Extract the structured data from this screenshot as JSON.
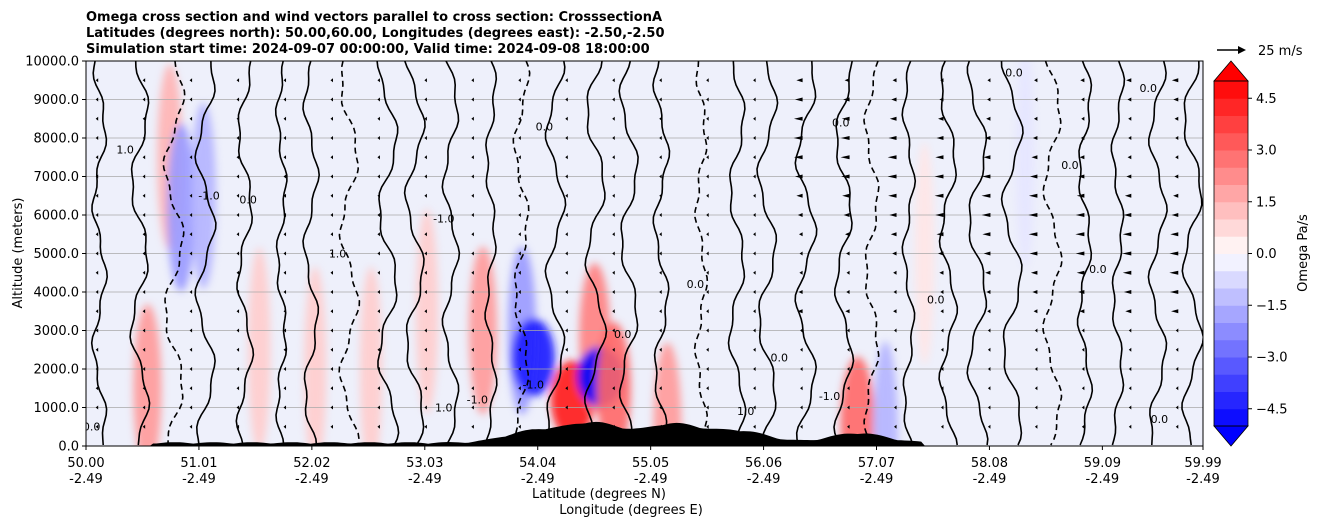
{
  "chart_data": {
    "type": "heatmap",
    "title_lines": [
      "Omega cross section and wind vectors parallel to cross section: CrosssectionA",
      "Latitudes (degrees north): 50.00,60.00, Longitudes (degrees east): -2.50,-2.50",
      "Simulation start time: 2024-09-07 00:00:00, Valid time: 2024-09-08 18:00:00"
    ],
    "ylabel": "Altitude (meters)",
    "xlabel_lines": [
      "Latitude (degrees N)",
      "Longitude (degrees E)"
    ],
    "ylim": [
      0,
      10000
    ],
    "xlim": [
      50.0,
      59.99
    ],
    "y_ticks": [
      0,
      1000,
      2000,
      3000,
      4000,
      5000,
      6000,
      7000,
      8000,
      9000,
      10000
    ],
    "y_tick_labels": [
      "0.0",
      "1000.0",
      "2000.0",
      "3000.0",
      "4000.0",
      "5000.0",
      "6000.0",
      "7000.0",
      "8000.0",
      "9000.0",
      "10000.0"
    ],
    "x_ticks": [
      50.0,
      51.01,
      52.02,
      53.03,
      54.04,
      55.05,
      56.06,
      57.07,
      58.08,
      59.09,
      59.99
    ],
    "x_tick_labels": [
      {
        "lat": "50.00",
        "lon": "-2.49"
      },
      {
        "lat": "51.01",
        "lon": "-2.49"
      },
      {
        "lat": "52.02",
        "lon": "-2.49"
      },
      {
        "lat": "53.03",
        "lon": "-2.49"
      },
      {
        "lat": "54.04",
        "lon": "-2.49"
      },
      {
        "lat": "55.05",
        "lon": "-2.49"
      },
      {
        "lat": "56.06",
        "lon": "-2.49"
      },
      {
        "lat": "57.07",
        "lon": "-2.49"
      },
      {
        "lat": "58.08",
        "lon": "-2.49"
      },
      {
        "lat": "59.09",
        "lon": "-2.49"
      },
      {
        "lat": "59.99",
        "lon": "-2.49"
      }
    ],
    "colorbar": {
      "label": "Omega Pa/s",
      "range": [
        -5.0,
        5.0
      ],
      "step": 0.5,
      "extend": "both",
      "ticks": [
        4.5,
        3.0,
        1.5,
        0.0,
        -1.5,
        -3.0,
        -4.5
      ],
      "tick_labels": [
        "4.5",
        "3.0",
        "1.5",
        "0.0",
        "−1.5",
        "−3.0",
        "−4.5"
      ],
      "colormap": "bwr"
    },
    "vector_key": {
      "label": "25 m/s",
      "speed": 25
    },
    "contour_levels": [
      -1.0,
      0.0,
      1.0
    ],
    "omega_features": [
      {
        "lat": 50.55,
        "alt": 1500,
        "omega": 2.0
      },
      {
        "lat": 50.75,
        "alt": 7500,
        "omega": 1.5
      },
      {
        "lat": 50.85,
        "alt": 6200,
        "omega": -2.0
      },
      {
        "lat": 51.05,
        "alt": 6500,
        "omega": -1.5
      },
      {
        "lat": 51.55,
        "alt": 2500,
        "omega": 1.0
      },
      {
        "lat": 52.05,
        "alt": 2000,
        "omega": 1.0
      },
      {
        "lat": 52.55,
        "alt": 2000,
        "omega": 1.0
      },
      {
        "lat": 53.05,
        "alt": 3500,
        "omega": 1.0
      },
      {
        "lat": 53.55,
        "alt": 3000,
        "omega": 2.0
      },
      {
        "lat": 53.9,
        "alt": 3000,
        "omega": -2.0
      },
      {
        "lat": 54.0,
        "alt": 2300,
        "omega": -4.5
      },
      {
        "lat": 54.35,
        "alt": 1200,
        "omega": 4.5
      },
      {
        "lat": 54.55,
        "alt": 2800,
        "omega": 2.5
      },
      {
        "lat": 54.6,
        "alt": 1800,
        "omega": -5.0
      },
      {
        "lat": 54.72,
        "alt": 1500,
        "omega": 3.0
      },
      {
        "lat": 55.2,
        "alt": 500,
        "omega": 2.0
      },
      {
        "lat": 56.9,
        "alt": 600,
        "omega": 3.0
      },
      {
        "lat": 57.15,
        "alt": 300,
        "omega": -1.5
      },
      {
        "lat": 58.4,
        "alt": 7500,
        "omega": -0.5
      },
      {
        "lat": 57.5,
        "alt": 5000,
        "omega": 0.5
      }
    ],
    "terrain_peaks": [
      {
        "lat": 54.0,
        "alt": 300
      },
      {
        "lat": 54.55,
        "alt": 500
      },
      {
        "lat": 55.25,
        "alt": 480
      },
      {
        "lat": 55.85,
        "alt": 300
      },
      {
        "lat": 56.9,
        "alt": 250
      }
    ],
    "contour_labels": [
      {
        "text": "0.0",
        "lat": 50.05,
        "alt": 400
      },
      {
        "text": "1.0",
        "lat": 50.35,
        "alt": 7600
      },
      {
        "text": "-1.0",
        "lat": 51.1,
        "alt": 6400
      },
      {
        "text": "0.0",
        "lat": 51.45,
        "alt": 6300
      },
      {
        "text": "1.0",
        "lat": 52.25,
        "alt": 4900
      },
      {
        "text": "-1.0",
        "lat": 53.2,
        "alt": 5800
      },
      {
        "text": "1.0",
        "lat": 53.2,
        "alt": 900
      },
      {
        "text": "-1.0",
        "lat": 53.5,
        "alt": 1100
      },
      {
        "text": "-1.0",
        "lat": 54.0,
        "alt": 1500
      },
      {
        "text": "0.0",
        "lat": 54.1,
        "alt": 8200
      },
      {
        "text": "0.0",
        "lat": 54.8,
        "alt": 2800
      },
      {
        "text": "0.0",
        "lat": 55.45,
        "alt": 4100
      },
      {
        "text": "1.0",
        "lat": 55.9,
        "alt": 800
      },
      {
        "text": "0.0",
        "lat": 56.2,
        "alt": 2200
      },
      {
        "text": "-1.0",
        "lat": 56.65,
        "alt": 1200
      },
      {
        "text": "0.0",
        "lat": 56.75,
        "alt": 8300
      },
      {
        "text": "0.0",
        "lat": 57.6,
        "alt": 3700
      },
      {
        "text": "0.0",
        "lat": 58.3,
        "alt": 9600
      },
      {
        "text": "0.0",
        "lat": 58.8,
        "alt": 7200
      },
      {
        "text": "0.0",
        "lat": 59.05,
        "alt": 4500
      },
      {
        "text": "0.0",
        "lat": 59.5,
        "alt": 9200
      },
      {
        "text": "0.0",
        "lat": 59.6,
        "alt": 600
      }
    ]
  }
}
